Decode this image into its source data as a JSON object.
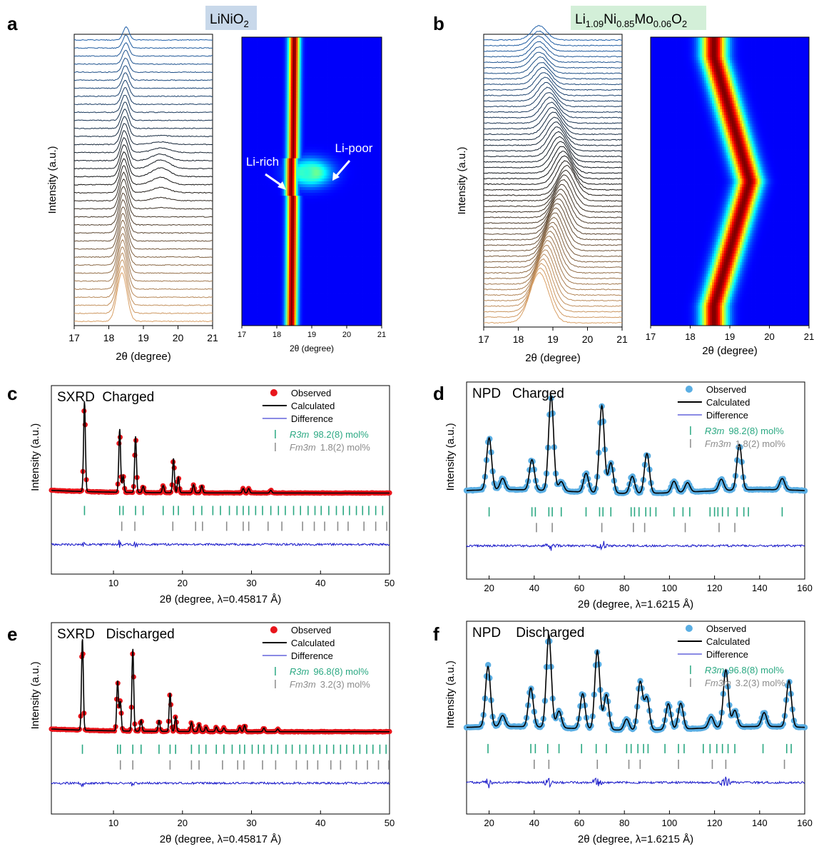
{
  "figure": {
    "panel_labels": [
      "a",
      "b",
      "c",
      "d",
      "e",
      "f"
    ],
    "title_a": {
      "main": "LiNiO",
      "sub": "2"
    },
    "title_b": {
      "parts": [
        {
          "t": "Li",
          "sub": false
        },
        {
          "t": "1.09",
          "sub": true
        },
        {
          "t": "Ni",
          "sub": false
        },
        {
          "t": "0.85",
          "sub": true
        },
        {
          "t": "Mo",
          "sub": false
        },
        {
          "t": "0.06",
          "sub": true
        },
        {
          "t": "O",
          "sub": false
        },
        {
          "t": "2",
          "sub": true
        }
      ]
    },
    "colors": {
      "title_a_bg": "#c8d8ea",
      "title_b_bg": "#d3efd8",
      "observed_sxrd": "#e8151b",
      "observed_npd": "#5aaee3",
      "calculated": "#000000",
      "difference": "#1515c8",
      "tick_r3m": "#2aa882",
      "tick_fm3m": "#8c8c8c",
      "stack_top": "#1f5fa8",
      "stack_bottom": "#d9a066"
    }
  },
  "chart_data": [
    {
      "panel": "a",
      "type": "line",
      "subtype": "stacked_waterfall",
      "xlabel": "2θ (degree)",
      "ylabel": "Intensity (a.u.)",
      "xlim": [
        17,
        21
      ],
      "xticks": [
        17,
        18,
        19,
        20,
        21
      ],
      "curves": 36,
      "peak_position_top": 18.5,
      "peak_position_bottom": 18.4,
      "second_phase_peak": 19.5
    },
    {
      "panel": "a-map",
      "type": "heatmap",
      "xlabel": "2θ (degree)",
      "xlim": [
        17,
        21
      ],
      "xticks": [
        17,
        18,
        19,
        20,
        21
      ],
      "annotations": [
        "Li-rich",
        "Li-poor"
      ],
      "ridge_top": 18.5,
      "ridge_bottom": 18.45,
      "li_poor_center": 19.4
    },
    {
      "panel": "b",
      "type": "line",
      "subtype": "stacked_waterfall",
      "xlabel": "2θ (degree)",
      "ylabel": "Intensity (a.u.)",
      "xlim": [
        17,
        21
      ],
      "xticks": [
        17,
        18,
        19,
        20,
        21
      ],
      "curves": 52,
      "peak_position_top": 18.6,
      "peak_position_middle": 19.4,
      "peak_position_bottom": 18.6
    },
    {
      "panel": "b-map",
      "type": "heatmap",
      "xlabel": "2θ (degree)",
      "xlim": [
        17,
        21
      ],
      "xticks": [
        17,
        18,
        19,
        20,
        21
      ],
      "ridge_top": 18.6,
      "ridge_middle": 19.5,
      "ridge_bottom": 18.6
    },
    {
      "panel": "c",
      "type": "scatter",
      "title": "SXRD  Charged",
      "xlabel": "2θ (degree, λ=0.45817 Å)",
      "ylabel": "Intensity (a.u.)",
      "xlim": [
        1,
        50
      ],
      "xticks": [
        10,
        20,
        30,
        40,
        50
      ],
      "legend": [
        "Observed",
        "Calculated",
        "Difference"
      ],
      "phases": [
        {
          "name": "R3m",
          "fraction": "98.2(8) mol%"
        },
        {
          "name": "Fm3m",
          "fraction": "1.8(2) mol%"
        }
      ],
      "peaks": [
        [
          5.8,
          1.0
        ],
        [
          10.9,
          0.7
        ],
        [
          11.4,
          0.18
        ],
        [
          13.2,
          0.62
        ],
        [
          14.3,
          0.07
        ],
        [
          17.2,
          0.08
        ],
        [
          18.7,
          0.38
        ],
        [
          19.4,
          0.17
        ],
        [
          21.6,
          0.09
        ],
        [
          22.8,
          0.08
        ],
        [
          28.8,
          0.05
        ],
        [
          29.6,
          0.05
        ],
        [
          32.8,
          0.03
        ]
      ],
      "r3m_ticks": [
        5.8,
        10.9,
        11.4,
        13.2,
        14.3,
        17.2,
        18.7,
        19.4,
        21.6,
        22.8,
        24.4,
        25.5,
        26.8,
        27.9,
        28.8,
        29.6,
        30.6,
        31.6,
        32.8,
        33.9,
        34.9,
        36.1,
        37.1,
        38.2,
        39.2,
        40.1,
        41.2,
        42.3,
        43.3,
        44.2,
        45.2,
        46.1,
        47.0,
        48.0,
        49.0
      ],
      "fm3m_ticks": [
        11.2,
        13.1,
        18.6,
        21.9,
        22.9,
        26.4,
        28.8,
        29.6,
        32.4,
        34.4,
        37.4,
        39.1,
        40.6,
        42.5,
        44.0,
        46.3,
        48.0,
        49.6
      ]
    },
    {
      "panel": "d",
      "type": "scatter",
      "title": "NPD   Charged",
      "xlabel": "2θ (degree, λ=1.6215 Å)",
      "ylabel": "Intensity (a.u.)",
      "xlim": [
        10,
        160
      ],
      "xticks": [
        20,
        40,
        60,
        80,
        100,
        120,
        140,
        160
      ],
      "legend": [
        "Observed",
        "Calculated",
        "Difference"
      ],
      "phases": [
        {
          "name": "R3m",
          "fraction": "98.2(8) mol%"
        },
        {
          "name": "Fm3m",
          "fraction": "1.8(2) mol%"
        }
      ],
      "peaks": [
        [
          20,
          0.55
        ],
        [
          26,
          0.12
        ],
        [
          39,
          0.32
        ],
        [
          47.5,
          1.0
        ],
        [
          52,
          0.1
        ],
        [
          63,
          0.2
        ],
        [
          70,
          0.92
        ],
        [
          74,
          0.32
        ],
        [
          83.5,
          0.18
        ],
        [
          90,
          0.42
        ],
        [
          102,
          0.12
        ],
        [
          108,
          0.1
        ],
        [
          123,
          0.12
        ],
        [
          131,
          0.48
        ],
        [
          150,
          0.12
        ]
      ],
      "r3m_ticks": [
        20,
        39,
        40.5,
        46.5,
        48,
        52,
        63,
        69,
        70.5,
        74,
        83,
        84.5,
        86.5,
        89.5,
        91.5,
        94,
        102,
        106,
        109,
        118,
        120,
        121.5,
        123.5,
        126,
        130,
        133,
        135,
        150
      ],
      "fm3m_ticks": [
        41,
        48,
        70,
        84,
        89,
        107,
        122,
        129
      ]
    },
    {
      "panel": "e",
      "type": "scatter",
      "title": "SXRD   Discharged",
      "xlabel": "2θ (degree, λ=0.45817 Å)",
      "ylabel": "Intensity (a.u.)",
      "xlim": [
        1,
        50
      ],
      "xticks": [
        10,
        20,
        30,
        40,
        50
      ],
      "legend": [
        "Observed",
        "Calculated",
        "Difference"
      ],
      "phases": [
        {
          "name": "R3m",
          "fraction": "96.8(8) mol%"
        },
        {
          "name": "Fm3m",
          "fraction": "3.2(3) mol%"
        }
      ],
      "peaks": [
        [
          5.5,
          1.0
        ],
        [
          10.6,
          0.55
        ],
        [
          11.0,
          0.32
        ],
        [
          12.8,
          0.9
        ],
        [
          14.0,
          0.12
        ],
        [
          16.6,
          0.12
        ],
        [
          18.2,
          0.42
        ],
        [
          19.0,
          0.16
        ],
        [
          21.3,
          0.1
        ],
        [
          22.4,
          0.08
        ],
        [
          23.4,
          0.05
        ],
        [
          24.9,
          0.05
        ],
        [
          26.0,
          0.04
        ],
        [
          28.3,
          0.05
        ],
        [
          29.0,
          0.07
        ],
        [
          31.8,
          0.04
        ],
        [
          33.8,
          0.03
        ]
      ],
      "r3m_ticks": [
        5.5,
        10.6,
        11.0,
        12.8,
        14.0,
        16.6,
        18.2,
        19.0,
        21.3,
        22.4,
        23.4,
        24.9,
        26.0,
        27.2,
        28.3,
        29.0,
        30.1,
        31.0,
        31.8,
        32.9,
        33.8,
        35.0,
        35.9,
        37.0,
        37.9,
        39.0,
        39.9,
        40.9,
        41.9,
        42.9,
        43.8,
        44.8,
        45.7,
        46.7,
        47.6,
        48.6,
        49.5
      ],
      "fm3m_ticks": [
        11.0,
        12.8,
        18.2,
        21.3,
        22.4,
        25.8,
        28.0,
        28.9,
        31.6,
        33.5,
        36.5,
        38.1,
        39.6,
        41.5,
        42.9,
        45.2,
        46.8,
        48.4,
        49.9
      ]
    },
    {
      "panel": "f",
      "type": "scatter",
      "title": "NPD    Discharged",
      "xlabel": "2θ (degree, λ=1.6215 Å)",
      "ylabel": "Intensity (a.u.)",
      "xlim": [
        10,
        160
      ],
      "xticks": [
        20,
        40,
        60,
        80,
        100,
        120,
        140,
        160
      ],
      "legend": [
        "Observed",
        "Calculated",
        "Difference"
      ],
      "phases": [
        {
          "name": "R3m",
          "fraction": "96.8(8) mol%"
        },
        {
          "name": "Fm3m",
          "fraction": "3.2(3) mol%"
        }
      ],
      "peaks": [
        [
          19.5,
          0.65
        ],
        [
          26,
          0.12
        ],
        [
          38.5,
          0.42
        ],
        [
          46.5,
          1.0
        ],
        [
          51,
          0.18
        ],
        [
          61.5,
          0.38
        ],
        [
          68,
          0.85
        ],
        [
          72,
          0.38
        ],
        [
          81,
          0.12
        ],
        [
          87,
          0.52
        ],
        [
          90,
          0.35
        ],
        [
          99.5,
          0.28
        ],
        [
          105,
          0.28
        ],
        [
          118.5,
          0.12
        ],
        [
          125,
          0.62
        ],
        [
          129,
          0.18
        ],
        [
          142,
          0.15
        ],
        [
          153,
          0.5
        ]
      ],
      "r3m_ticks": [
        19.5,
        38.5,
        40.5,
        46,
        51,
        61,
        67.5,
        72,
        81,
        83,
        86,
        88.5,
        90.5,
        98,
        104,
        106.5,
        115,
        118,
        121,
        123.5,
        126,
        129,
        141.5,
        152,
        154
      ],
      "fm3m_ticks": [
        40,
        46.5,
        68,
        82,
        87,
        104,
        119,
        125,
        151
      ]
    }
  ]
}
